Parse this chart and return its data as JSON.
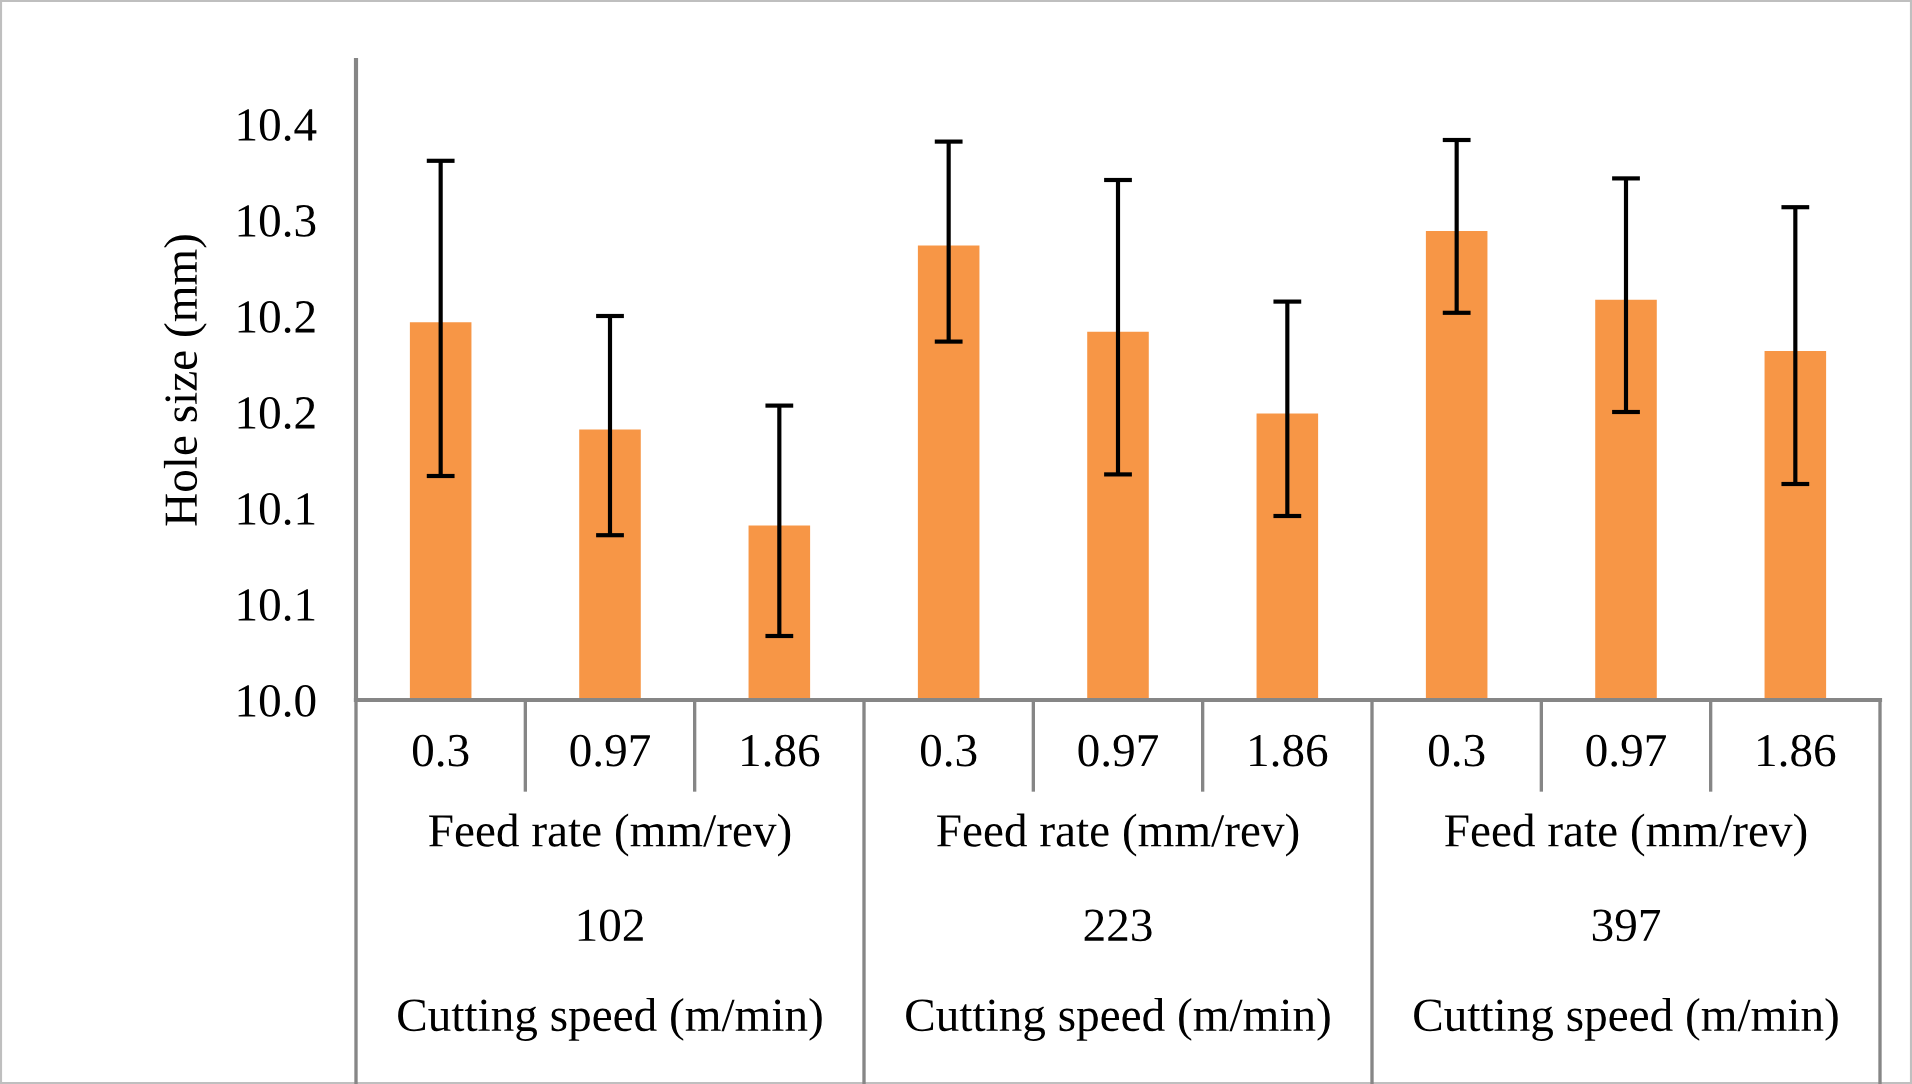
{
  "chart_data": {
    "type": "bar",
    "ylabel": "Hole size (mm)",
    "categories": [
      "0.3",
      "0.97",
      "1.86",
      "0.3",
      "0.97",
      "1.86",
      "0.3",
      "0.97",
      "1.86"
    ],
    "values": [
      10.237,
      10.17,
      10.11,
      10.285,
      10.231,
      10.18,
      10.294,
      10.251,
      10.219
    ],
    "errors": [
      [
        10.14,
        10.337
      ],
      [
        10.103,
        10.24
      ],
      [
        10.04,
        10.184
      ],
      [
        10.224,
        10.349
      ],
      [
        10.141,
        10.325
      ],
      [
        10.115,
        10.249
      ],
      [
        10.242,
        10.35
      ],
      [
        10.18,
        10.326
      ],
      [
        10.135,
        10.308
      ]
    ],
    "color": "#f79646",
    "ylim": [
      10.0,
      10.4
    ],
    "yticks": [
      {
        "value": 10.0,
        "label": "10.0"
      },
      {
        "value": 10.06,
        "label": "10.1"
      },
      {
        "value": 10.12,
        "label": "10.1"
      },
      {
        "value": 10.18,
        "label": "10.2"
      },
      {
        "value": 10.24,
        "label": "10.2"
      },
      {
        "value": 10.3,
        "label": "10.3"
      },
      {
        "value": 10.36,
        "label": "10.4"
      }
    ],
    "grid": false,
    "annotations": [
      "Feed rate (mm/rev)",
      "102",
      "Cutting speed (m/min)",
      "Feed rate (mm/rev)",
      "223",
      "Cutting speed (m/min)",
      "Feed rate (mm/rev)",
      "397",
      "Cutting speed (m/min)"
    ]
  }
}
